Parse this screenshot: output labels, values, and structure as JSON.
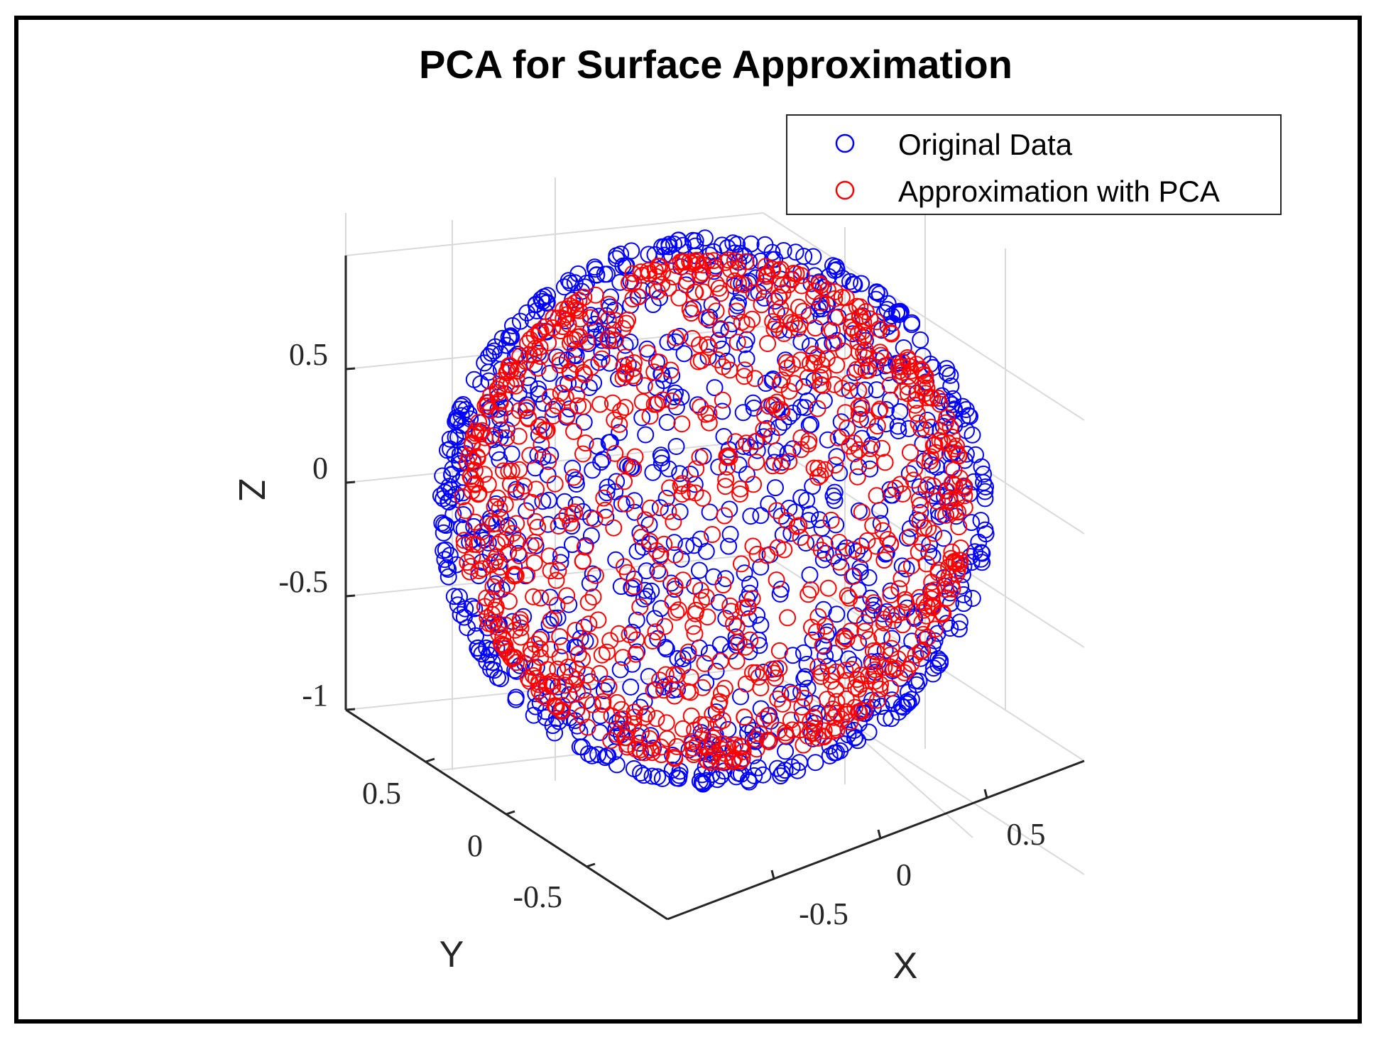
{
  "chart_data": {
    "type": "scatter",
    "title": "PCA for Surface Approximation",
    "xlabel": "X",
    "ylabel": "Y",
    "zlabel": "Z",
    "x_ticks": [
      "-0.5",
      "0",
      "0.5"
    ],
    "y_ticks": [
      "-0.5",
      "0",
      "0.5"
    ],
    "z_ticks": [
      "-1",
      "-0.5",
      "0",
      "0.5"
    ],
    "xlim": [
      -1,
      1
    ],
    "ylim": [
      -1,
      1
    ],
    "zlim": [
      -1,
      1
    ],
    "grid": true,
    "legend_position": "top-right",
    "marker": "circle (open)",
    "series": [
      {
        "name": "Original Data",
        "color": "#0000ff",
        "shape": "unit sphere surface",
        "radius": 1.0,
        "approx_points": 1000
      },
      {
        "name": "Approximation with PCA",
        "color": "#ff0000",
        "shape": "sphere approximation",
        "radius": 0.92,
        "approx_points": 1000
      }
    ]
  }
}
